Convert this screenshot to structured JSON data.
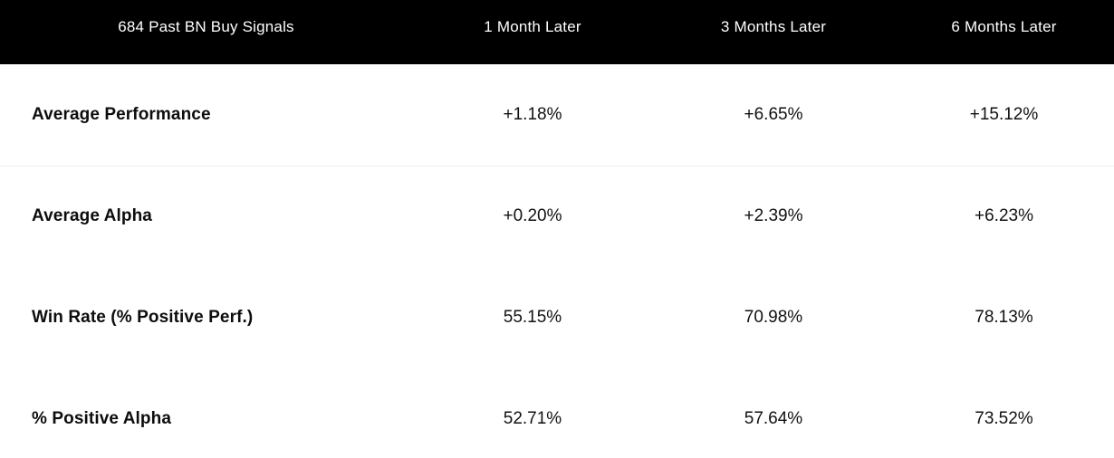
{
  "table": {
    "header": {
      "signals": "684 Past BN Buy Signals",
      "month1": "1 Month Later",
      "month3": "3 Months Later",
      "month6": "6 Months Later"
    },
    "rows": [
      {
        "label": "Average Performance",
        "month1": "+1.18%",
        "month3": "+6.65%",
        "month6": "+15.12%"
      },
      {
        "label": "Average Alpha",
        "month1": "+0.20%",
        "month3": "+2.39%",
        "month6": "+6.23%"
      },
      {
        "label": "Win Rate (% Positive Perf.)",
        "month1": "55.15%",
        "month3": "70.98%",
        "month6": "78.13%"
      },
      {
        "label": "% Positive Alpha",
        "month1": "52.71%",
        "month3": "57.64%",
        "month6": "73.52%"
      }
    ]
  },
  "colors": {
    "header_bg": "#000000",
    "header_text": "#ffffff",
    "body_text": "#111111",
    "divider": "#ededed",
    "background": "#ffffff"
  },
  "chart_data": {
    "type": "table",
    "title": "684 Past BN Buy Signals",
    "columns": [
      "684 Past BN Buy Signals",
      "1 Month Later",
      "3 Months Later",
      "6 Months Later"
    ],
    "categories": [
      "1 Month Later",
      "3 Months Later",
      "6 Months Later"
    ],
    "rows": [
      [
        "Average Performance",
        "+1.18%",
        "+6.65%",
        "+15.12%"
      ],
      [
        "Average Alpha",
        "+0.20%",
        "+2.39%",
        "+6.23%"
      ],
      [
        "Win Rate (% Positive Perf.)",
        "55.15%",
        "70.98%",
        "78.13%"
      ],
      [
        "% Positive Alpha",
        "52.71%",
        "57.64%",
        "73.52%"
      ]
    ],
    "series": [
      {
        "name": "Average Performance (%)",
        "values": [
          1.18,
          6.65,
          15.12
        ]
      },
      {
        "name": "Average Alpha (%)",
        "values": [
          0.2,
          2.39,
          6.23
        ]
      },
      {
        "name": "Win Rate (% Positive Perf.)",
        "values": [
          55.15,
          70.98,
          78.13
        ]
      },
      {
        "name": "% Positive Alpha",
        "values": [
          52.71,
          57.64,
          73.52
        ]
      }
    ]
  }
}
